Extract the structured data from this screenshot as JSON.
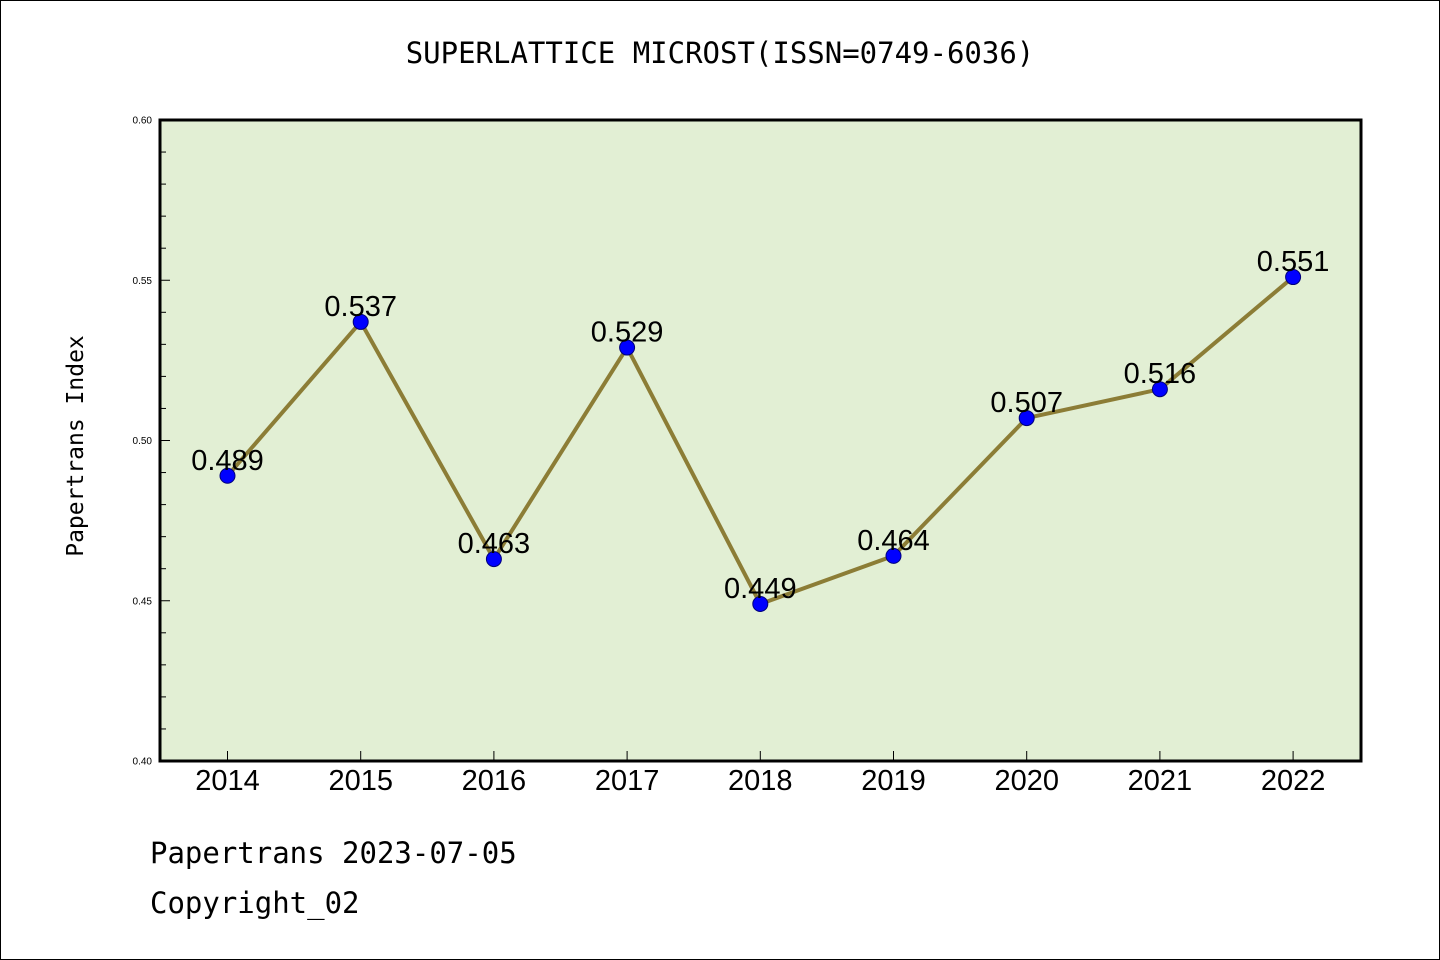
{
  "footer": {
    "date_line": "Papertrans 2023-07-05",
    "copyright": "Copyright_02"
  },
  "colors": {
    "plot_background": "#e2efd4",
    "line": "#8c7d36",
    "marker": "#0000ff",
    "marker_edge": "#00007a"
  },
  "chart_data": {
    "type": "line",
    "title": "SUPERLATTICE MICROST(ISSN=0749-6036)",
    "xlabel": "",
    "ylabel": "Papertrans Index",
    "categories": [
      "2014",
      "2015",
      "2016",
      "2017",
      "2018",
      "2019",
      "2020",
      "2021",
      "2022"
    ],
    "series": [
      {
        "values": [
          0.489,
          0.537,
          0.463,
          0.529,
          0.449,
          0.464,
          0.507,
          0.516,
          0.551
        ],
        "data_labels": [
          "0.489",
          "0.537",
          "0.463",
          "0.529",
          "0.449",
          "0.464",
          "0.507",
          "0.516",
          "0.551"
        ]
      }
    ],
    "ylim": [
      0.4,
      0.6
    ],
    "y_ticks": [
      "0.40",
      "0.45",
      "0.50",
      "0.55",
      "0.60"
    ],
    "grid": false,
    "legend": "none"
  }
}
